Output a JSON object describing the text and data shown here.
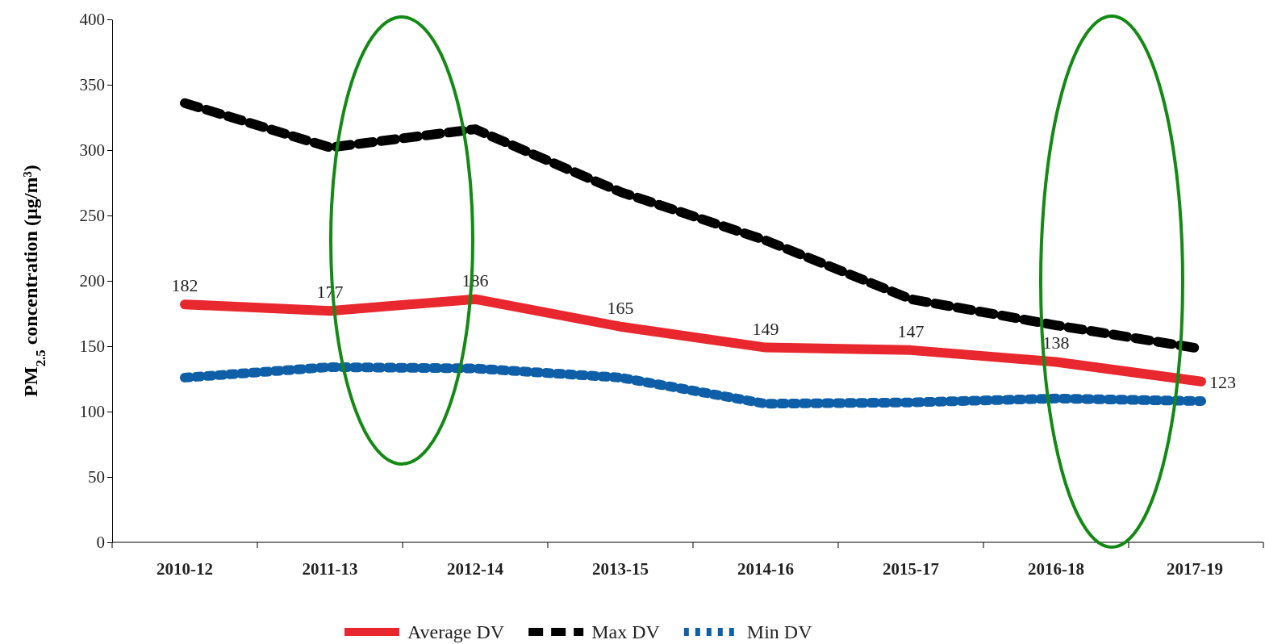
{
  "chart_data": {
    "type": "line",
    "ylabel": "PM$_{2.5}$ concentration (µg/m³)",
    "categories": [
      "2010-12",
      "2011-13",
      "2012-14",
      "2013-15",
      "2014-16",
      "2015-17",
      "2016-18",
      "2017-19"
    ],
    "series": [
      {
        "name": "Average DV",
        "color": "#e8282e",
        "line_style": "solid",
        "values": [
          182,
          177,
          186,
          165,
          149,
          147,
          138,
          123
        ],
        "data_labels": true
      },
      {
        "name": "Max DV",
        "color": "#000000",
        "line_style": "dashed",
        "values": [
          336,
          302,
          316,
          268,
          231,
          186,
          166,
          148
        ]
      },
      {
        "name": "Min DV",
        "color": "#0f5fa8",
        "line_style": "dotted",
        "values": [
          126,
          134,
          133,
          126,
          106,
          107,
          110,
          108
        ]
      }
    ],
    "ylim": [
      0,
      400
    ],
    "yticks": [
      0,
      50,
      100,
      150,
      200,
      250,
      300,
      350,
      400
    ],
    "grid": false,
    "legend": "bottom",
    "marker": "none"
  }
}
